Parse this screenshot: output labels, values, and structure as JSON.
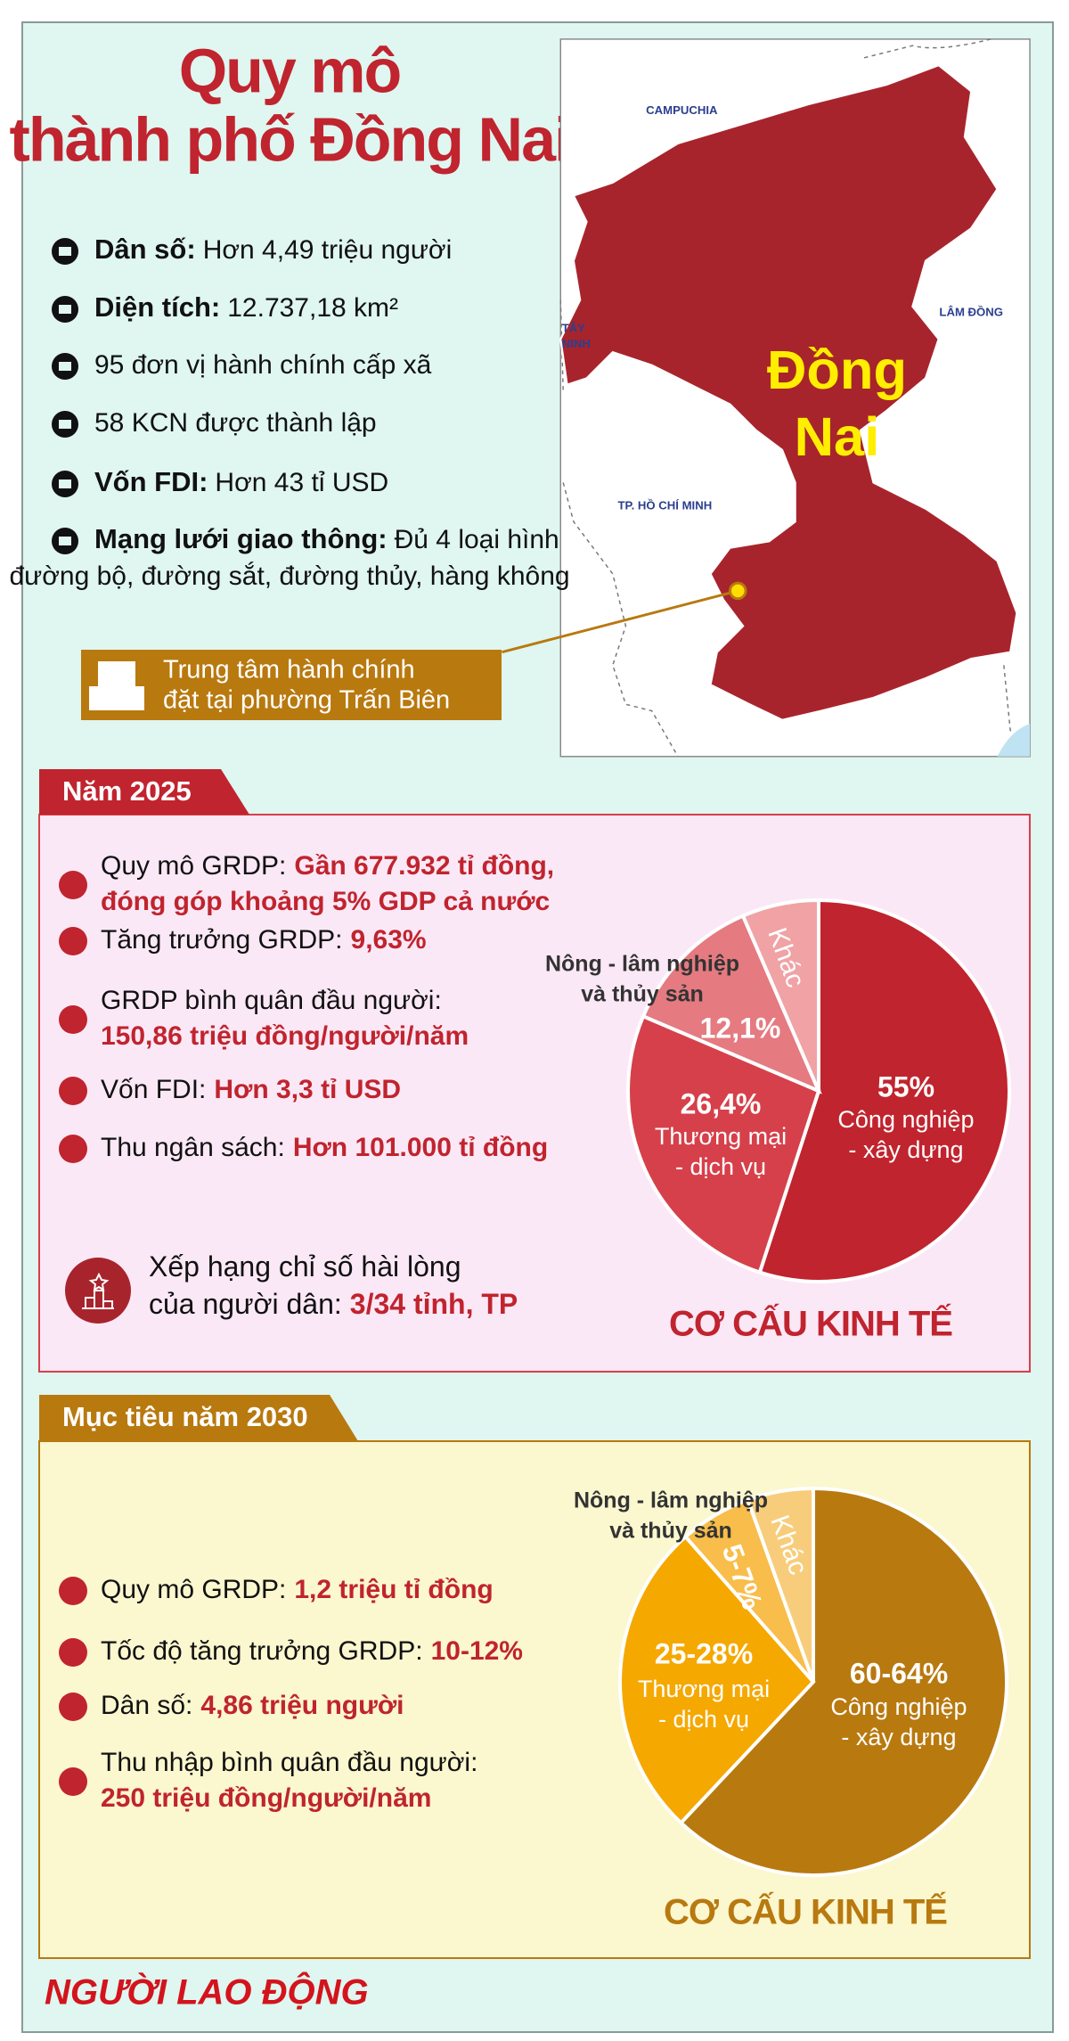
{
  "header": {
    "title": [
      "Quy mô",
      "thành phố Đồng Nai"
    ]
  },
  "facts": [
    {
      "label": "Dân số:",
      "text": "Hơn 4,49 triệu người"
    },
    {
      "label": "Diện tích:",
      "text": "12.737,18 km²"
    },
    {
      "text": "95 đơn vị hành chính cấp xã"
    },
    {
      "text": "58 KCN được thành lập"
    },
    {
      "label": "Vốn FDI:",
      "text": "Hơn 43 tỉ USD"
    },
    {
      "label": "Mạng lưới giao thông:",
      "text": "Đủ 4 loại hình",
      "text2": "đường bộ, đường sắt, đường thủy, hàng không"
    }
  ],
  "callout": [
    "Trung tâm hành chính",
    "đặt tại phường Trấn Biên"
  ],
  "map": {
    "name": [
      "Đồng",
      "Nai"
    ],
    "campuchia": "CAMPUCHIA",
    "tay_ninh": [
      "TÂY",
      "NINH"
    ],
    "lam_dong": "LÂM ĐỒNG",
    "hcm": "TP. HỒ CHÍ MINH"
  },
  "year_2025": {
    "tab": "Năm 2025",
    "items": [
      [
        {
          "plain": "Quy mô GRDP:",
          "strong": "Gần 677.932 tỉ đồng,"
        },
        {
          "strong": "đóng góp khoảng 5% GDP cả nước"
        }
      ],
      [
        {
          "plain": "Tăng trưởng GRDP:",
          "strong": "9,63%"
        }
      ],
      [
        {
          "plain": "GRDP bình quân đầu người:"
        },
        {
          "strong": "150,86 triệu đồng/người/năm"
        }
      ],
      [
        {
          "plain": "Vốn FDI:",
          "strong": "Hơn 3,3 tỉ USD"
        }
      ],
      [
        {
          "plain": "Thu ngân sách:",
          "strong": "Hơn 101.000 tỉ đồng"
        }
      ]
    ],
    "ranking": [
      {
        "plain": "Xếp hạng chỉ số hài lòng"
      },
      {
        "plain": "của người dân:",
        "strong": "3/34 tỉnh, TP"
      }
    ]
  },
  "year_2030": {
    "tab": "Mục tiêu năm 2030",
    "items": [
      [
        {
          "plain": "Quy mô GRDP:",
          "strong": "1,2 triệu tỉ đồng"
        }
      ],
      [
        {
          "plain": "Tốc độ tăng trưởng GRDP:",
          "strong": "10-12%"
        }
      ],
      [
        {
          "plain": "Dân số:",
          "strong": "4,86 triệu người"
        }
      ],
      [
        {
          "plain": "Thu nhập bình quân đầu người:"
        },
        {
          "strong": "250 triệu đồng/người/năm"
        }
      ]
    ]
  },
  "chart_data": [
    {
      "type": "pie",
      "title": "CƠ CẤU KINH TẾ",
      "title_color": "#c0242e",
      "categories": [
        [
          "Công nghiệp",
          "- xây dựng"
        ],
        [
          "Thương mại",
          "- dịch vụ"
        ],
        [
          "Nông - lâm nghiệp",
          "và thủy sản"
        ],
        [
          "Khác"
        ]
      ],
      "values": [
        55,
        26.4,
        12.1,
        6.5
      ],
      "value_labels": [
        "55%",
        "26,4%",
        "12,1%",
        null
      ],
      "colors": [
        "#c0242e",
        "#d6404a",
        "#e57a80",
        "#f0a2a5"
      ]
    },
    {
      "type": "pie",
      "title": "CƠ CẤU KINH TẾ",
      "title_color": "#b8790f",
      "categories": [
        [
          "Công nghiệp",
          "- xây dựng"
        ],
        [
          "Thương mại",
          "- dịch vụ"
        ],
        [
          "Nông - lâm nghiệp",
          "và thủy sản"
        ],
        [
          "Khác"
        ]
      ],
      "values": [
        62,
        26.5,
        6,
        5.5
      ],
      "value_labels": [
        "60-64%",
        "25-28%",
        "5-7%",
        null
      ],
      "colors": [
        "#b8790f",
        "#f5a800",
        "#f8bd4a",
        "#f7cd7b"
      ]
    }
  ],
  "footer": "NGƯỜI LAO ĐỘNG"
}
